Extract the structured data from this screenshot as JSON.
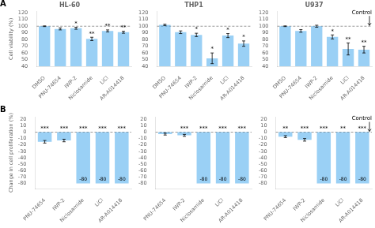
{
  "chart_data": [
    {
      "type": "bar",
      "panel_label": "A",
      "title": "HL-60",
      "ylabel": "Cell viability (%)",
      "categories": [
        "DMSO",
        "PNU-74654",
        "IWP-2",
        "Niclosamide",
        "LiCl",
        "AR-A014418"
      ],
      "values": [
        100,
        96,
        97,
        81,
        93,
        91
      ],
      "errors": [
        0.5,
        1.5,
        1.5,
        2.5,
        1.5,
        1.5
      ],
      "significance": [
        null,
        null,
        "*",
        "**",
        "**",
        "**"
      ],
      "reference_line": 100,
      "ylim": [
        40,
        122
      ],
      "yticks": [
        40,
        50,
        60,
        70,
        80,
        90,
        100,
        110,
        120
      ],
      "grid": false
    },
    {
      "type": "bar",
      "title": "THP1",
      "categories": [
        "DMSO",
        "PNU-74654",
        "IWP-2",
        "Niclosamide",
        "LiCl",
        "AR-A014418"
      ],
      "values": [
        102,
        91,
        87,
        52,
        86,
        74
      ],
      "errors": [
        1.0,
        2.0,
        2.5,
        8.0,
        3.0,
        4.0
      ],
      "significance": [
        null,
        null,
        "*",
        "*",
        "*",
        "*"
      ],
      "reference_line": 100,
      "ylim": [
        40,
        122
      ],
      "yticks": [
        40,
        50,
        60,
        70,
        80,
        90,
        100,
        110,
        120
      ],
      "grid": false
    },
    {
      "type": "bar",
      "title": "U937",
      "categories": [
        "DMSO",
        "PNU-74654",
        "IWP-2",
        "Niclosamide",
        "LiCl",
        "AR-A014418"
      ],
      "values": [
        100,
        93,
        100,
        84,
        66,
        65
      ],
      "errors": [
        0.5,
        2.0,
        1.5,
        3.0,
        9.0,
        5.0
      ],
      "significance": [
        null,
        null,
        null,
        "*",
        "**",
        "**"
      ],
      "reference_line": 100,
      "annotation": "Control",
      "ylim": [
        40,
        122
      ],
      "yticks": [
        40,
        50,
        60,
        70,
        80,
        90,
        100,
        110,
        120
      ],
      "grid": false
    },
    {
      "type": "bar",
      "panel_label": "B",
      "ylabel": "Change in cell proliferation (%)",
      "categories": [
        "PNU-74654",
        "IWP-2",
        "Niclosamide",
        "LiCl",
        "AR-A014418"
      ],
      "values": [
        -15,
        -13,
        -80,
        -80,
        -80
      ],
      "errors": [
        2.0,
        2.0,
        0,
        0,
        0
      ],
      "significance": [
        "***",
        "***",
        "***",
        "***",
        "***"
      ],
      "data_labels": true,
      "value_labels": [
        null,
        null,
        "-80",
        "-80",
        "-80"
      ],
      "reference_line": 0,
      "ylim": [
        -88,
        24
      ],
      "yticks": [
        -80,
        -70,
        -60,
        -50,
        -40,
        -30,
        -20,
        -10,
        0,
        10,
        20
      ],
      "grid": false
    },
    {
      "type": "bar",
      "categories": [
        "PNU-74654",
        "IWP-2",
        "Niclosamide",
        "LiCl",
        "AR-A014418"
      ],
      "values": [
        -3,
        -5,
        -80,
        -80,
        -80
      ],
      "errors": [
        1.5,
        1.5,
        0,
        0,
        0
      ],
      "significance": [
        null,
        "***",
        "***",
        "***",
        "***"
      ],
      "data_labels": true,
      "value_labels": [
        null,
        null,
        "-80",
        "-80",
        "-80"
      ],
      "reference_line": 0,
      "ylim": [
        -88,
        24
      ],
      "yticks": [
        -80,
        -70,
        -60,
        -50,
        -40,
        -30,
        -20,
        -10,
        0,
        10,
        20
      ],
      "grid": false
    },
    {
      "type": "bar",
      "categories": [
        "PNU-74654",
        "IWP-2",
        "Niclosamide",
        "LiCl",
        "AR-A014418"
      ],
      "values": [
        -7,
        -12,
        -80,
        -80,
        -80
      ],
      "errors": [
        1.5,
        2.0,
        0,
        0,
        0
      ],
      "significance": [
        "**",
        "***",
        "***",
        "**",
        "***"
      ],
      "data_labels": true,
      "value_labels": [
        null,
        null,
        "-80",
        "-80",
        "-80"
      ],
      "reference_line": 0,
      "annotation": "Control",
      "ylim": [
        -88,
        24
      ],
      "yticks": [
        -80,
        -70,
        -60,
        -50,
        -40,
        -30,
        -20,
        -10,
        0,
        10,
        20
      ],
      "grid": false
    }
  ]
}
